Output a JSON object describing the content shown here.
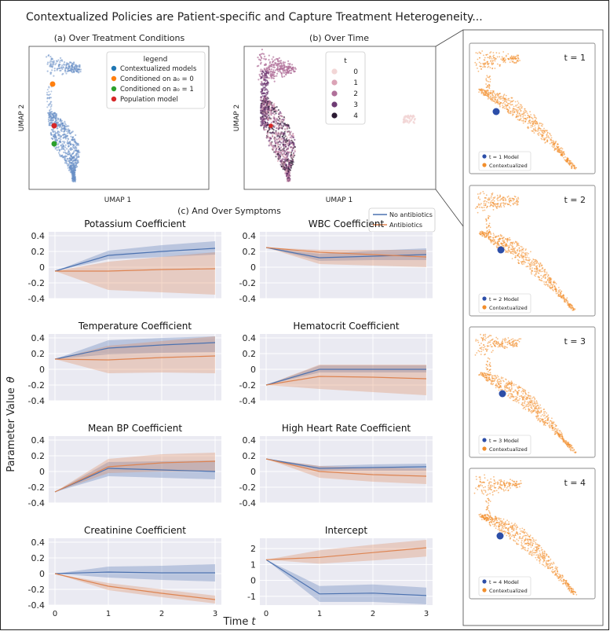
{
  "figure": {
    "title": "Contextualized Policies are Patient-specific and Capture Treatment Heterogeneity...",
    "shared_ylabel": "Parameter Value",
    "shared_ylabel_symbol": "θ",
    "shared_xlabel": "Time",
    "shared_xlabel_symbol": "t",
    "colors": {
      "blue": "#4c72b0",
      "orange": "#dd8452",
      "green": "#2ca02c",
      "red": "#d62728",
      "panel_bg": "#eaeaf2",
      "umap_point": "#6a8fc7",
      "right_point": "#f28e2b"
    }
  },
  "chart_data": [
    {
      "type": "scatter",
      "title": "(a) Over Treatment Conditions",
      "xlabel": "UMAP 1",
      "ylabel": "UMAP 2",
      "legend": {
        "title": "legend",
        "placement": "top-right",
        "entries": [
          {
            "label": "Contextualized models",
            "color": "#1f77b4"
          },
          {
            "label": "Conditioned on a₀ = 0",
            "color": "#ff7f0e"
          },
          {
            "label": "Conditioned on a₀ = 1",
            "color": "#2ca02c"
          },
          {
            "label": "Population model",
            "color": "#d62728"
          }
        ]
      }
    },
    {
      "type": "scatter",
      "title": "(b) Over Time",
      "xlabel": "UMAP 1",
      "ylabel": "UMAP 2",
      "legend": {
        "title": "t",
        "placement": "top-center",
        "entries": [
          {
            "label": "0",
            "color": "#f2d6d6"
          },
          {
            "label": "1",
            "color": "#dba3b6"
          },
          {
            "label": "2",
            "color": "#b0709a"
          },
          {
            "label": "3",
            "color": "#6e3b74"
          },
          {
            "label": "4",
            "color": "#2b1a33"
          }
        ]
      }
    },
    {
      "type": "line",
      "title": "(c) And Over Symptoms",
      "x": [
        0,
        1,
        2,
        3
      ],
      "legend_entries": [
        "No antibiotics",
        "Antibiotics"
      ],
      "panels": [
        {
          "title": "Potassium Coefficient",
          "ylim": [
            -0.4,
            0.45
          ],
          "yticks": [
            "0.4",
            "0.2",
            "0",
            "-0.2",
            "-0.4"
          ],
          "show_xticks": false,
          "series": [
            {
              "name": "No antibiotics",
              "values": [
                -0.05,
                0.15,
                0.2,
                0.24
              ],
              "lower": [
                -0.05,
                0.1,
                0.13,
                0.16
              ],
              "upper": [
                -0.05,
                0.21,
                0.28,
                0.33
              ]
            },
            {
              "name": "Antibiotics",
              "values": [
                -0.05,
                -0.05,
                -0.03,
                -0.02
              ],
              "lower": [
                -0.05,
                -0.29,
                -0.32,
                -0.35
              ],
              "upper": [
                -0.05,
                0.07,
                0.13,
                0.19
              ]
            }
          ]
        },
        {
          "title": "WBC Coefficient",
          "ylim": [
            -0.4,
            0.45
          ],
          "yticks": [
            "0.4",
            "0.2",
            "0",
            "-0.2",
            "-0.4"
          ],
          "show_xticks": false,
          "series": [
            {
              "name": "No antibiotics",
              "values": [
                0.25,
                0.12,
                0.14,
                0.16
              ],
              "lower": [
                0.25,
                0.08,
                0.09,
                0.09
              ],
              "upper": [
                0.25,
                0.17,
                0.21,
                0.24
              ]
            },
            {
              "name": "Antibiotics",
              "values": [
                0.25,
                0.19,
                0.16,
                0.13
              ],
              "lower": [
                0.25,
                0.04,
                0.02,
                0.0
              ],
              "upper": [
                0.25,
                0.22,
                0.22,
                0.22
              ]
            }
          ]
        },
        {
          "title": "Temperature Coefficient",
          "ylim": [
            -0.4,
            0.45
          ],
          "yticks": [
            "0.4",
            "0.2",
            "0",
            "-0.2",
            "-0.4"
          ],
          "show_xticks": false,
          "series": [
            {
              "name": "No antibiotics",
              "values": [
                0.13,
                0.27,
                0.31,
                0.34
              ],
              "lower": [
                0.13,
                0.19,
                0.21,
                0.22
              ],
              "upper": [
                0.13,
                0.37,
                0.4,
                0.42
              ]
            },
            {
              "name": "Antibiotics",
              "values": [
                0.13,
                0.12,
                0.15,
                0.17
              ],
              "lower": [
                0.13,
                -0.05,
                -0.04,
                -0.05
              ],
              "upper": [
                0.13,
                0.3,
                0.36,
                0.42
              ]
            }
          ]
        },
        {
          "title": "Hematocrit Coefficient",
          "ylim": [
            -0.4,
            0.45
          ],
          "yticks": [
            "0.4",
            "0.2",
            "0",
            "-0.2",
            "-0.4"
          ],
          "show_xticks": false,
          "series": [
            {
              "name": "No antibiotics",
              "values": [
                -0.2,
                0.0,
                0.0,
                0.0
              ],
              "lower": [
                -0.2,
                -0.04,
                -0.04,
                -0.04
              ],
              "upper": [
                -0.2,
                0.05,
                0.05,
                0.05
              ]
            },
            {
              "name": "Antibiotics",
              "values": [
                -0.2,
                -0.09,
                -0.1,
                -0.12
              ],
              "lower": [
                -0.2,
                -0.25,
                -0.29,
                -0.33
              ],
              "upper": [
                -0.2,
                0.06,
                0.06,
                0.06
              ]
            }
          ]
        },
        {
          "title": "Mean BP Coefficient",
          "ylim": [
            -0.4,
            0.45
          ],
          "yticks": [
            "0.4",
            "0.2",
            "0",
            "-0.2",
            "-0.4"
          ],
          "show_xticks": false,
          "series": [
            {
              "name": "No antibiotics",
              "values": [
                -0.26,
                0.04,
                0.02,
                0.0
              ],
              "lower": [
                -0.26,
                -0.06,
                -0.08,
                -0.1
              ],
              "upper": [
                -0.26,
                0.12,
                0.13,
                0.14
              ]
            },
            {
              "name": "Antibiotics",
              "values": [
                -0.26,
                0.06,
                0.11,
                0.13
              ],
              "lower": [
                -0.26,
                -0.02,
                0.0,
                0.0
              ],
              "upper": [
                -0.26,
                0.16,
                0.22,
                0.24
              ]
            }
          ]
        },
        {
          "title": "High Heart Rate Coefficient",
          "ylim": [
            -0.4,
            0.45
          ],
          "yticks": [
            "0.4",
            "0.2",
            "0",
            "-0.2",
            "-0.4"
          ],
          "show_xticks": false,
          "series": [
            {
              "name": "No antibiotics",
              "values": [
                0.16,
                0.04,
                0.05,
                0.06
              ],
              "lower": [
                0.16,
                0.01,
                0.01,
                0.01
              ],
              "upper": [
                0.16,
                0.07,
                0.09,
                0.1
              ]
            },
            {
              "name": "Antibiotics",
              "values": [
                0.16,
                0.0,
                -0.04,
                -0.06
              ],
              "lower": [
                0.16,
                -0.08,
                -0.13,
                -0.16
              ],
              "upper": [
                0.16,
                0.07,
                0.05,
                0.04
              ]
            }
          ]
        },
        {
          "title": "Creatinine Coefficient",
          "ylim": [
            -0.4,
            0.45
          ],
          "yticks": [
            "0.4",
            "0.2",
            "0",
            "-0.2",
            "-0.4"
          ],
          "show_xticks": true,
          "series": [
            {
              "name": "No antibiotics",
              "values": [
                0.0,
                0.02,
                0.01,
                0.01
              ],
              "lower": [
                0.0,
                -0.05,
                -0.08,
                -0.1
              ],
              "upper": [
                0.0,
                0.09,
                0.1,
                0.12
              ]
            },
            {
              "name": "Antibiotics",
              "values": [
                0.0,
                -0.16,
                -0.25,
                -0.33
              ],
              "lower": [
                0.0,
                -0.21,
                -0.3,
                -0.38
              ],
              "upper": [
                0.0,
                -0.12,
                -0.2,
                -0.28
              ]
            }
          ]
        },
        {
          "title": "Intercept",
          "ylim": [
            -1.55,
            2.65
          ],
          "yticks": [
            "2",
            "1",
            "0",
            "-1"
          ],
          "show_xticks": true,
          "series": [
            {
              "name": "No antibiotics",
              "values": [
                1.3,
                -0.85,
                -0.8,
                -0.95
              ],
              "lower": [
                1.3,
                -1.35,
                -1.35,
                -1.5
              ],
              "upper": [
                1.3,
                -0.35,
                -0.25,
                -0.45
              ]
            },
            {
              "name": "Antibiotics",
              "values": [
                1.3,
                1.45,
                1.75,
                2.05
              ],
              "lower": [
                1.3,
                1.05,
                1.25,
                1.5
              ],
              "upper": [
                1.3,
                1.9,
                2.25,
                2.55
              ]
            }
          ]
        }
      ]
    },
    {
      "type": "scatter",
      "panels": [
        {
          "title": "t = 1",
          "legend": [
            "t = 1 Model",
            "Contextualized"
          ]
        },
        {
          "title": "t = 2",
          "legend": [
            "t = 2 Model",
            "Contextualized"
          ]
        },
        {
          "title": "t = 3",
          "legend": [
            "t = 3 Model",
            "Contextualized"
          ]
        },
        {
          "title": "t = 4",
          "legend": [
            "t = 4 Model",
            "Contextualized"
          ]
        }
      ]
    }
  ]
}
